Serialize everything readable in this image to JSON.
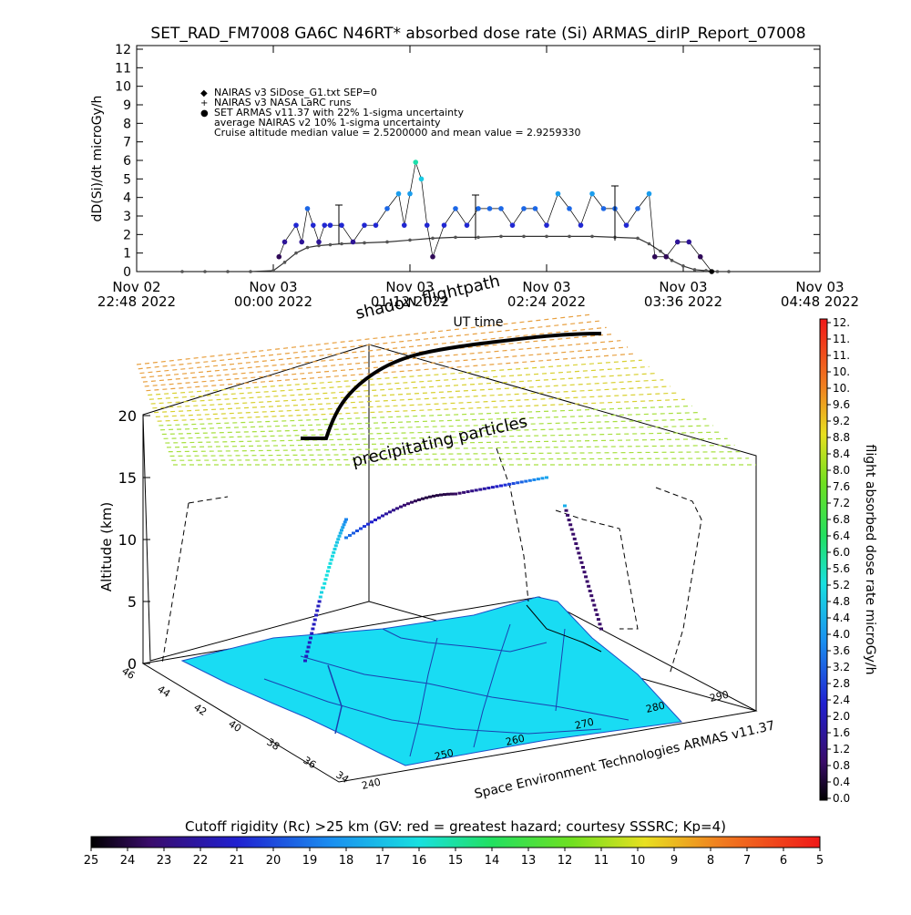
{
  "header": {
    "title": "SET_RAD_FM7008  GA6C N46RT* absorbed dose rate (Si) ARMAS_dirIP_Report_07008"
  },
  "top_chart": {
    "ylabel": "dD(Si)/dt microGy/h",
    "xlabel": "UT time",
    "y_ticks": [
      "0",
      "1",
      "2",
      "3",
      "4",
      "5",
      "6",
      "7",
      "8",
      "9",
      "10",
      "11",
      "12"
    ],
    "x_ticks": [
      {
        "day": "Nov 02",
        "time": "22:48 2022"
      },
      {
        "day": "Nov 03",
        "time": "00:00 2022"
      },
      {
        "day": "Nov 03",
        "time": "01:12 2022"
      },
      {
        "day": "Nov 03",
        "time": "02:24 2022"
      },
      {
        "day": "Nov 03",
        "time": "03:36 2022"
      },
      {
        "day": "Nov 03",
        "time": "04:48 2022"
      }
    ],
    "legend": [
      {
        "symbol": "◆",
        "color": "#000000",
        "text": "NAIRAS v3 SiDose_G1.txt SEP=0"
      },
      {
        "symbol": "+",
        "color": "#000000",
        "text": "NAIRAS v3 NASA LaRC runs"
      },
      {
        "symbol": "●",
        "color": "#1f3fe0",
        "text": "SET ARMAS v11.37 with 22% 1-sigma uncertainty"
      },
      {
        "symbol": "",
        "color": "#000000",
        "text": "average NAIRAS v2 10% 1-sigma uncertainty"
      },
      {
        "symbol": "",
        "color": "#000000",
        "text": "Cruise altitude median value = 2.5200000 and mean value = 2.9259330"
      }
    ]
  },
  "scene3d": {
    "label_shadow": "shadow flightpath",
    "label_particles": "precipitating particles",
    "z_label": "Altitude (km)",
    "z_ticks": [
      "0",
      "5",
      "10",
      "15",
      "20"
    ],
    "lat_ticks": [
      "46",
      "44",
      "42",
      "40",
      "38",
      "36",
      "34"
    ],
    "lon_ticks": [
      "240",
      "250",
      "260",
      "270",
      "280",
      "290"
    ],
    "credit": "Space Environment Technologies ARMAS v11.37",
    "ground_color": "#19dcf3"
  },
  "colorbar_right": {
    "label": "flight absorbed dose rate microGy/h",
    "ticks": [
      "0.0",
      "0.4",
      "0.8",
      "1.2",
      "1.6",
      "2.0",
      "2.4",
      "2.8",
      "3.2",
      "3.6",
      "4.0",
      "4.4",
      "4.8",
      "5.2",
      "5.6",
      "6.0",
      "6.4",
      "6.8",
      "7.2",
      "7.6",
      "8.0",
      "8.4",
      "8.8",
      "9.2",
      "9.6",
      "10.",
      "10.",
      "11.",
      "11.",
      "12."
    ]
  },
  "colorbar_bottom": {
    "title": "Cutoff rigidity (Rc) >25 km (GV: red = greatest hazard; courtesy SSSRC; Kp=4)",
    "ticks": [
      "25",
      "24",
      "23",
      "22",
      "21",
      "20",
      "19",
      "18",
      "17",
      "16",
      "15",
      "14",
      "13",
      "12",
      "11",
      "10",
      "9",
      "8",
      "7",
      "6",
      "5"
    ]
  },
  "chart_data": {
    "type": "scatter",
    "title": "SET_RAD_FM7008  GA6C N46RT* absorbed dose rate (Si) ARMAS_dirIP_Report_07008",
    "xlabel": "UT time",
    "ylabel": "dD(Si)/dt microGy/h",
    "ylim": [
      0,
      12
    ],
    "xlim": [
      "Nov 02 22:48 2022",
      "Nov 03 04:48 2022"
    ],
    "x_unit": "UT hours from Nov 03 00:00",
    "series": [
      {
        "name": "NAIRAS v3 SiDose_G1.txt SEP=0",
        "x": [
          -0.8,
          -0.6,
          -0.4,
          -0.2,
          0.0,
          0.1,
          0.2,
          0.3,
          0.4,
          0.5,
          0.6,
          0.8,
          1.0,
          1.2,
          1.4,
          1.6,
          1.8,
          2.0,
          2.2,
          2.4,
          2.6,
          2.8,
          3.0,
          3.2,
          3.3,
          3.4,
          3.5,
          3.6,
          3.7,
          3.8,
          3.9,
          4.0
        ],
        "values": [
          0.0,
          0.0,
          0.0,
          0.0,
          0.05,
          0.5,
          1.0,
          1.3,
          1.4,
          1.45,
          1.5,
          1.55,
          1.6,
          1.7,
          1.8,
          1.85,
          1.85,
          1.9,
          1.9,
          1.9,
          1.9,
          1.9,
          1.85,
          1.8,
          1.5,
          1.1,
          0.6,
          0.3,
          0.1,
          0.05,
          0.0,
          0.0
        ]
      },
      {
        "name": "SET ARMAS v11.37 with 22% 1-sigma uncertainty",
        "x": [
          0.05,
          0.1,
          0.2,
          0.25,
          0.3,
          0.35,
          0.4,
          0.45,
          0.5,
          0.6,
          0.7,
          0.8,
          0.9,
          1.0,
          1.1,
          1.15,
          1.2,
          1.25,
          1.3,
          1.35,
          1.4,
          1.5,
          1.6,
          1.7,
          1.8,
          1.9,
          2.0,
          2.1,
          2.2,
          2.3,
          2.4,
          2.5,
          2.6,
          2.7,
          2.8,
          2.9,
          3.0,
          3.1,
          3.2,
          3.3,
          3.35,
          3.45,
          3.55,
          3.65,
          3.75,
          3.85
        ],
        "values": [
          0.8,
          1.6,
          2.5,
          1.6,
          3.4,
          2.5,
          1.6,
          2.5,
          2.5,
          2.5,
          1.6,
          2.5,
          2.5,
          3.4,
          4.2,
          2.5,
          4.2,
          5.9,
          5.0,
          2.5,
          0.8,
          2.5,
          3.4,
          2.5,
          3.4,
          3.4,
          3.4,
          2.5,
          3.4,
          3.4,
          2.5,
          4.2,
          3.4,
          2.5,
          4.2,
          3.4,
          3.4,
          2.5,
          3.4,
          4.2,
          0.8,
          0.8,
          1.6,
          1.6,
          0.8,
          0.0
        ]
      }
    ]
  }
}
